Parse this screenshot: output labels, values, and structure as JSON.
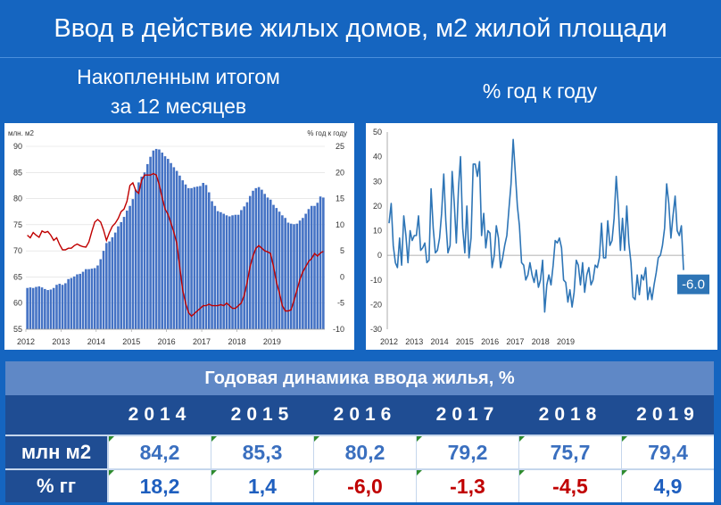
{
  "title": "Ввод в действие жилых домов, м2 жилой площади",
  "subtitle_left": [
    "Накопленным итогом",
    "за 12 месяцев"
  ],
  "subtitle_right": "% год к году",
  "colors": {
    "background": "#1565c0",
    "bars": "#4472c4",
    "red_line": "#c00000",
    "line_blue": "#2e75b6",
    "neg": "#c00000",
    "pos": "#1f5fbf"
  },
  "chart_data": [
    {
      "type": "bar",
      "left_axis_label": "млн. м2",
      "right_axis_label": "% год к году",
      "ylim_left": [
        55,
        90
      ],
      "yticks_left": [
        55,
        60,
        65,
        70,
        75,
        80,
        85,
        90
      ],
      "ylim_right": [
        -10,
        25
      ],
      "yticks_right": [
        -10,
        -5,
        0,
        5,
        10,
        15,
        20,
        25
      ],
      "x_ticks": [
        "2012",
        "2013",
        "2014",
        "2015",
        "2016",
        "2017",
        "2018",
        "2019"
      ],
      "series": [
        {
          "type": "bar",
          "axis": "left",
          "values": [
            62.9,
            63.0,
            62.9,
            63.1,
            63.2,
            63.0,
            62.7,
            62.5,
            62.6,
            62.9,
            63.5,
            63.7,
            63.5,
            63.8,
            64.6,
            64.8,
            65.1,
            65.5,
            65.6,
            66.0,
            66.5,
            66.5,
            66.6,
            66.7,
            67.2,
            68.4,
            70.0,
            71.5,
            71.8,
            72.6,
            73.5,
            74.7,
            75.5,
            76.5,
            77.7,
            78.6,
            79.9,
            81.7,
            83.1,
            84.2,
            85.0,
            86.6,
            88.0,
            89.2,
            89.5,
            89.4,
            88.8,
            88.1,
            87.6,
            86.8,
            86.0,
            85.3,
            84.4,
            83.5,
            82.7,
            82.0,
            82.0,
            82.2,
            82.3,
            82.4,
            83.0,
            82.6,
            81.2,
            79.5,
            78.6,
            77.6,
            77.4,
            77.1,
            76.8,
            76.6,
            76.8,
            76.9,
            76.9,
            77.8,
            78.5,
            79.3,
            80.5,
            81.5,
            82.0,
            82.2,
            81.7,
            80.9,
            80.2,
            79.8,
            78.8,
            78.2,
            77.5,
            76.8,
            76.3,
            75.4,
            75.2,
            75.1,
            75.2,
            75.8,
            76.3,
            77.1,
            78.0,
            78.6,
            78.6,
            79.2,
            80.4,
            80.2
          ]
        },
        {
          "type": "line",
          "axis": "right",
          "values": [
            8.0,
            7.5,
            8.5,
            8.0,
            7.6,
            8.8,
            8.5,
            8.7,
            8.0,
            7.0,
            7.5,
            6.2,
            5.2,
            5.2,
            5.5,
            5.5,
            6.0,
            6.3,
            6.0,
            5.8,
            5.7,
            6.7,
            8.7,
            10.5,
            11.0,
            10.5,
            9.0,
            7.0,
            8.5,
            9.7,
            10.3,
            11.2,
            12.5,
            13.0,
            14.5,
            17.5,
            18.0,
            16.5,
            16.0,
            18.5,
            19.5,
            19.5,
            19.5,
            19.8,
            19.5,
            17.7,
            15.2,
            13.0,
            12.0,
            10.3,
            8.5,
            6.5,
            2.0,
            -2.5,
            -5.0,
            -6.8,
            -7.5,
            -7.0,
            -6.5,
            -6.0,
            -5.5,
            -5.5,
            -5.2,
            -5.5,
            -5.5,
            -5.5,
            -5.3,
            -5.5,
            -5.0,
            -5.5,
            -6.0,
            -6.0,
            -5.5,
            -5.0,
            -3.5,
            -1.0,
            2.0,
            4.0,
            5.5,
            6.0,
            5.5,
            5.0,
            4.8,
            4.5,
            2.0,
            -1.0,
            -3.0,
            -5.5,
            -6.5,
            -6.5,
            -6.3,
            -4.5,
            -2.5,
            -0.5,
            1.0,
            2.0,
            3.0,
            3.5,
            4.5,
            4.0,
            4.6,
            4.9
          ]
        }
      ]
    },
    {
      "type": "line",
      "ylim": [
        -30,
        50
      ],
      "yticks": [
        -30,
        -20,
        -10,
        0,
        10,
        20,
        30,
        40,
        50
      ],
      "x_ticks": [
        "2012",
        "2013",
        "2014",
        "2015",
        "2016",
        "2017",
        "2018",
        "2019"
      ],
      "series": [
        {
          "values": [
            13,
            21,
            4,
            -3,
            -5,
            7,
            -4,
            16,
            8,
            -3,
            10,
            6,
            8,
            8,
            16,
            2,
            3,
            5,
            -3,
            -2,
            27,
            11,
            1,
            2,
            7,
            17,
            33,
            14,
            1,
            4,
            34,
            21,
            5,
            27,
            40,
            11,
            1,
            20,
            -1,
            7,
            37,
            37,
            32,
            38,
            8,
            17,
            3,
            10,
            9,
            -5,
            0,
            12,
            7,
            -5,
            -1,
            4,
            8,
            19,
            29,
            47,
            34,
            20,
            12,
            -3,
            -4,
            -10,
            -8,
            -3,
            -8,
            -11,
            -6,
            -13,
            -10,
            -2,
            -23,
            -12,
            -8,
            -12,
            -4,
            6,
            5,
            7,
            3,
            -10,
            -11,
            -19,
            -14,
            -21,
            -15,
            -2,
            -4,
            -12,
            -3,
            -15,
            -8,
            -5,
            -12,
            -10,
            -4,
            -5,
            -1,
            13,
            -1,
            -1,
            14,
            4,
            6,
            15,
            32,
            20,
            2,
            15,
            2,
            20,
            5,
            -3,
            -17,
            -18,
            -8,
            -16,
            -8,
            -10,
            -5,
            -18,
            -13,
            -18,
            -12,
            -7,
            -1,
            0,
            4,
            11,
            29,
            21,
            7,
            16,
            24,
            10,
            8,
            12,
            -6
          ]
        }
      ],
      "last_value_label": "-6.0"
    }
  ],
  "table": {
    "title": "Годовая динамика ввода жилья, %",
    "years": [
      "2014",
      "2015",
      "2016",
      "2017",
      "2018",
      "2019"
    ],
    "rows": [
      {
        "label": "млн м2",
        "values": [
          "84,2",
          "85,3",
          "80,2",
          "79,2",
          "75,7",
          "79,4"
        ],
        "colors": [
          "#3a6fbf",
          "#3a6fbf",
          "#3a6fbf",
          "#3a6fbf",
          "#3a6fbf",
          "#3a6fbf"
        ]
      },
      {
        "label": "% гг",
        "values": [
          "18,2",
          "1,4",
          "-6,0",
          "-1,3",
          "-4,5",
          "4,9"
        ],
        "colors": [
          "#1f5fbf",
          "#1f5fbf",
          "#c00000",
          "#c00000",
          "#c00000",
          "#1f5fbf"
        ]
      }
    ]
  }
}
